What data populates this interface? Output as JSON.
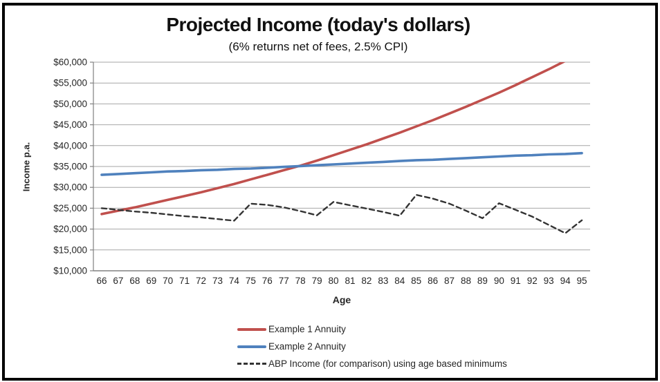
{
  "chart_data": {
    "type": "line",
    "title": "Projected Income (today's dollars)",
    "subtitle": "(6% returns net of fees, 2.5% CPI)",
    "xlabel": "Age",
    "ylabel": "Income p.a.",
    "x": [
      66,
      67,
      68,
      69,
      70,
      71,
      72,
      73,
      74,
      75,
      76,
      77,
      78,
      79,
      80,
      81,
      82,
      83,
      84,
      85,
      86,
      87,
      88,
      89,
      90,
      91,
      92,
      93,
      94,
      95
    ],
    "ylim": [
      10000,
      60000
    ],
    "ytick_step": 5000,
    "ytick_labels": [
      "$10,000",
      "$15,000",
      "$20,000",
      "$25,000",
      "$30,000",
      "$35,000",
      "$40,000",
      "$45,000",
      "$50,000",
      "$55,000",
      "$60,000"
    ],
    "grid": true,
    "legend_position": "bottom-left",
    "axis_color": "#808080",
    "grid_color": "#a6a6a6",
    "series": [
      {
        "name": "Example 1 Annuity",
        "color": "#c0504d",
        "style": "solid",
        "values": [
          23600,
          24400,
          25200,
          26100,
          27000,
          27900,
          28800,
          29800,
          30800,
          31900,
          33000,
          34100,
          35200,
          36400,
          37700,
          39000,
          40300,
          41700,
          43100,
          44600,
          46100,
          47700,
          49300,
          51000,
          52700,
          54500,
          56400,
          58300,
          60300,
          62300
        ]
      },
      {
        "name": "Example 2 Annuity",
        "color": "#4f81bd",
        "style": "solid",
        "values": [
          33000,
          33200,
          33400,
          33600,
          33800,
          33900,
          34100,
          34200,
          34400,
          34500,
          34700,
          34900,
          35100,
          35300,
          35500,
          35700,
          35900,
          36100,
          36300,
          36500,
          36600,
          36800,
          37000,
          37200,
          37400,
          37600,
          37700,
          37900,
          38000,
          38200
        ]
      },
      {
        "name": "ABP Income (for comparison) using age based minimums",
        "color": "#333333",
        "style": "dashed",
        "values": [
          25000,
          24600,
          24200,
          23900,
          23500,
          23100,
          22800,
          22400,
          22000,
          26100,
          25800,
          25200,
          24300,
          23300,
          26500,
          25700,
          24900,
          24100,
          23200,
          28200,
          27300,
          26100,
          24400,
          22600,
          26200,
          24600,
          23000,
          21000,
          19000,
          22100
        ]
      }
    ]
  }
}
